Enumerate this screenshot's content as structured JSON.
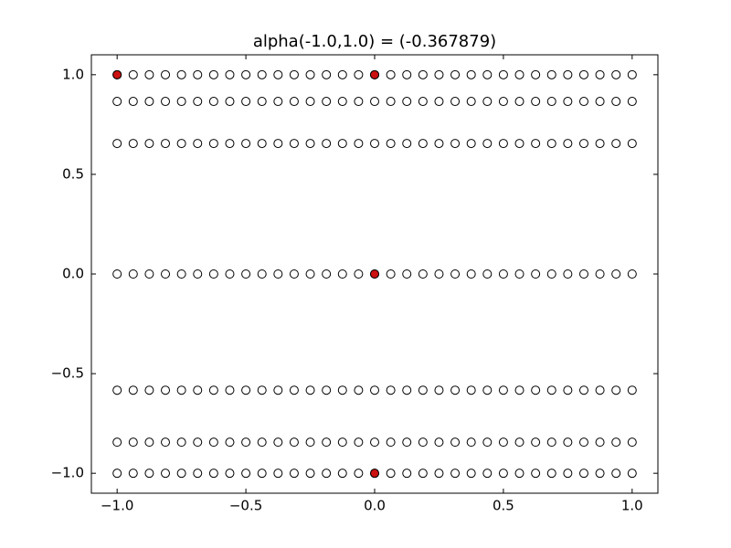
{
  "chart_data": {
    "type": "scatter",
    "title": "alpha(-1.0,1.0) =  (-0.367879)",
    "x": [
      -1,
      -0.9375,
      -0.875,
      -0.8125,
      -0.75,
      -0.6875,
      -0.625,
      -0.5625,
      -0.5,
      -0.4375,
      -0.375,
      -0.3125,
      -0.25,
      -0.1875,
      -0.125,
      -0.0625,
      0,
      0.0625,
      0.125,
      0.1875,
      0.25,
      0.3125,
      0.375,
      0.4375,
      0.5,
      0.5625,
      0.625,
      0.6875,
      0.75,
      0.8125,
      0.875,
      0.9375,
      1
    ],
    "rows": [
      1,
      0.866,
      0.655,
      0,
      -0.583,
      -0.844,
      -1
    ],
    "color": "#ffffff",
    "highlight": {
      "x": [
        -1,
        0,
        0,
        0
      ],
      "y": [
        1,
        1,
        0,
        -1
      ],
      "color": "#cc1111"
    },
    "xlim": [
      -1.1,
      1.1
    ],
    "ylim": [
      -1.1,
      1.1
    ],
    "xticks": [
      {
        "value": -1,
        "label": "−1.0"
      },
      {
        "value": -0.5,
        "label": "−0.5"
      },
      {
        "value": 0,
        "label": "0.0"
      },
      {
        "value": 0.5,
        "label": "0.5"
      },
      {
        "value": 1,
        "label": "1.0"
      }
    ],
    "yticks": [
      {
        "value": -1,
        "label": "−1.0"
      },
      {
        "value": -0.5,
        "label": "−0.5"
      },
      {
        "value": 0,
        "label": "0.0"
      },
      {
        "value": 0.5,
        "label": "0.5"
      },
      {
        "value": 1,
        "label": "1.0"
      }
    ]
  }
}
